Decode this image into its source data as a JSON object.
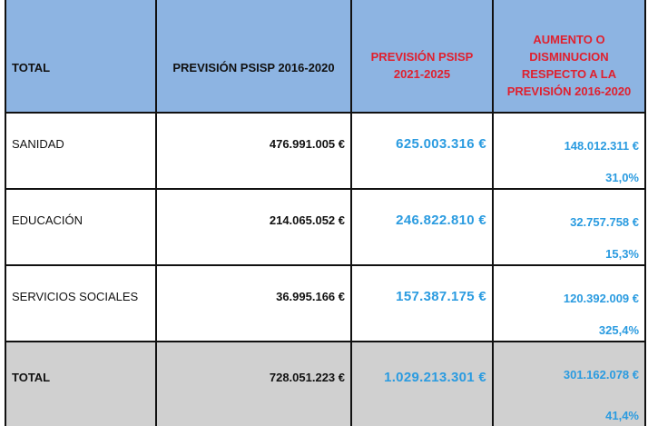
{
  "header": {
    "col1": "TOTAL",
    "col2": "PREVISIÓN PSISP 2016-2020",
    "col3_line1": "PREVISIÓN PSISP",
    "col3_line2": "2021-2025",
    "col4_line1": "AUMENTO O",
    "col4_line2": "DISMINUCION",
    "col4_line3": "RESPECTO A LA",
    "col4_line4": "PREVISIÓN 2016-2020"
  },
  "rows": [
    {
      "label": "SANIDAD",
      "prev_2016_2020": "476.991.005 €",
      "prev_2021_2025": "625.003.316 €",
      "diff_amount": "148.012.311 €",
      "diff_pct": "31,0%"
    },
    {
      "label": "EDUCACIÓN",
      "prev_2016_2020": "214.065.052 €",
      "prev_2021_2025": "246.822.810 €",
      "diff_amount": "32.757.758 €",
      "diff_pct": "15,3%"
    },
    {
      "label": "SERVICIOS SOCIALES",
      "prev_2016_2020": "36.995.166 €",
      "prev_2021_2025": "157.387.175 €",
      "diff_amount": "120.392.009 €",
      "diff_pct": "325,4%"
    }
  ],
  "total": {
    "label": "TOTAL",
    "prev_2016_2020": "728.051.223 €",
    "prev_2021_2025": "1.029.213.301 €",
    "diff_amount": "301.162.078 €",
    "diff_pct": "41,4%"
  },
  "colors": {
    "header_bg": "#8db4e2",
    "header_red_text": "#e0202e",
    "blue_values": "#2a9be0",
    "total_row_bg": "#d0d0d0",
    "border": "#111111"
  }
}
